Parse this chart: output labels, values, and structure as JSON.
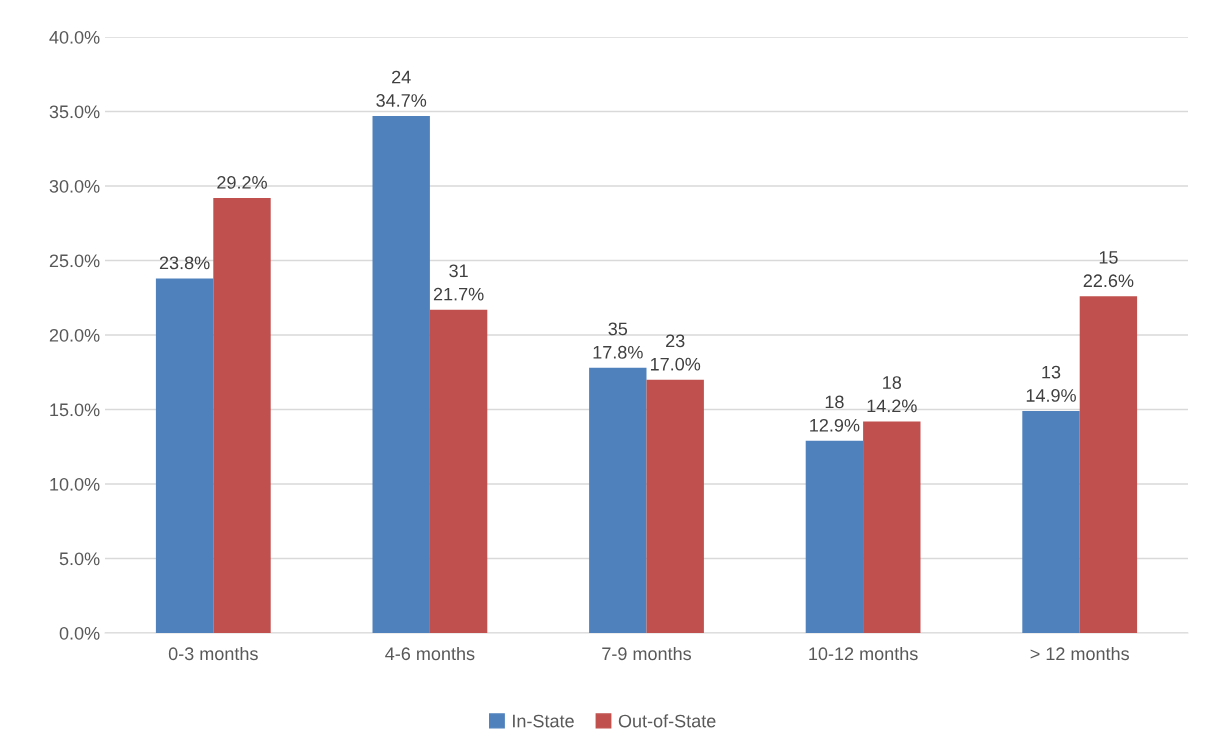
{
  "chart_data": {
    "type": "bar",
    "categories": [
      "0-3 months",
      "4-6 months",
      "7-9 months",
      "10-12 months",
      "> 12 months"
    ],
    "series": [
      {
        "name": "In-State",
        "color": "#4f81bd",
        "values": [
          23.8,
          34.7,
          17.8,
          12.9,
          14.9
        ],
        "value_labels": [
          "23.8%",
          "24\n34.7%",
          "35\n17.8%",
          "18\n12.9%",
          "13\n14.9%"
        ]
      },
      {
        "name": "Out-of-State",
        "color": "#c0504d",
        "values": [
          29.2,
          21.7,
          17.0,
          14.2,
          22.6
        ],
        "value_labels": [
          "29.2%",
          "31\n21.7%",
          "23\n17.0%",
          "18\n14.2%",
          "15\n22.6%"
        ]
      }
    ],
    "ylim": [
      0,
      40
    ],
    "yticks": [
      {
        "value": 0,
        "label": "0.0%"
      },
      {
        "value": 5,
        "label": "5.0%"
      },
      {
        "value": 10,
        "label": "10.0%"
      },
      {
        "value": 15,
        "label": "15.0%"
      },
      {
        "value": 20,
        "label": "20.0%"
      },
      {
        "value": 25,
        "label": "25.0%"
      },
      {
        "value": 30,
        "label": "30.0%"
      },
      {
        "value": 35,
        "label": "35.0%"
      },
      {
        "value": 40,
        "label": "40.0%"
      }
    ],
    "grid": "y",
    "legend": "bottom"
  }
}
